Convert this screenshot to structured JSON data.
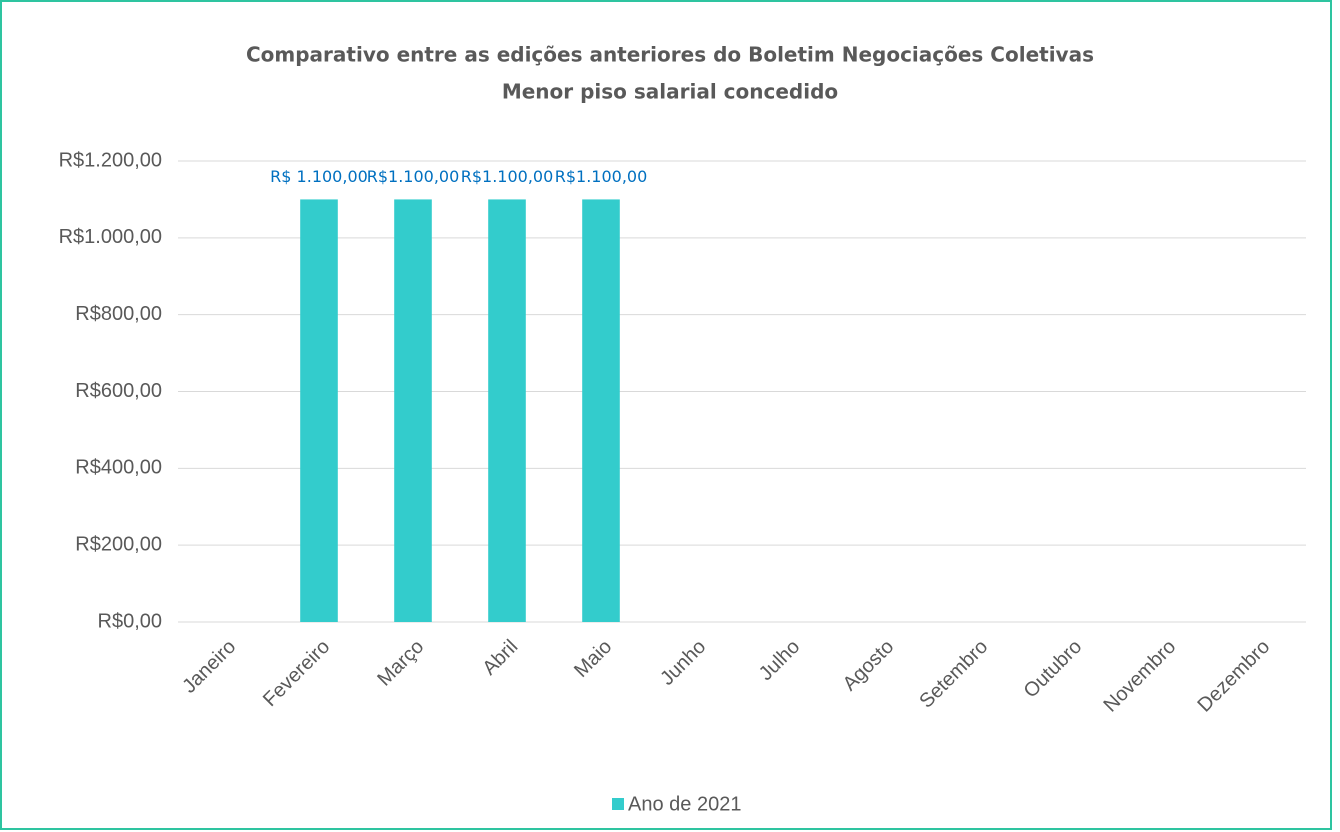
{
  "chart_data": {
    "type": "bar",
    "title": "Comparativo entre as edições anteriores do Boletim Negociações Coletivas",
    "subtitle": "Menor piso salarial concedido",
    "categories": [
      "Janeiro",
      "Fevereiro",
      "Março",
      "Abril",
      "Maio",
      "Junho",
      "Julho",
      "Agosto",
      "Setembro",
      "Outubro",
      "Novembro",
      "Dezembro"
    ],
    "series": [
      {
        "name": "Ano de 2021",
        "color": "#33cccc",
        "values": [
          null,
          1100,
          1100,
          1100,
          1100,
          null,
          null,
          null,
          null,
          null,
          null,
          null
        ],
        "value_labels": [
          null,
          "R$ 1.100,00",
          "R$1.100,00",
          "R$1.100,00",
          "R$1.100,00",
          null,
          null,
          null,
          null,
          null,
          null,
          null
        ]
      }
    ],
    "ylim": [
      0,
      1200
    ],
    "yticks": [
      {
        "value": 0,
        "label": "R$0,00"
      },
      {
        "value": 200,
        "label": "R$200,00"
      },
      {
        "value": 400,
        "label": "R$400,00"
      },
      {
        "value": 600,
        "label": "R$600,00"
      },
      {
        "value": 800,
        "label": "R$800,00"
      },
      {
        "value": 1000,
        "label": "R$1.000,00"
      },
      {
        "value": 1200,
        "label": "R$1.200,00"
      }
    ],
    "grid": true,
    "legend": "bottom"
  }
}
